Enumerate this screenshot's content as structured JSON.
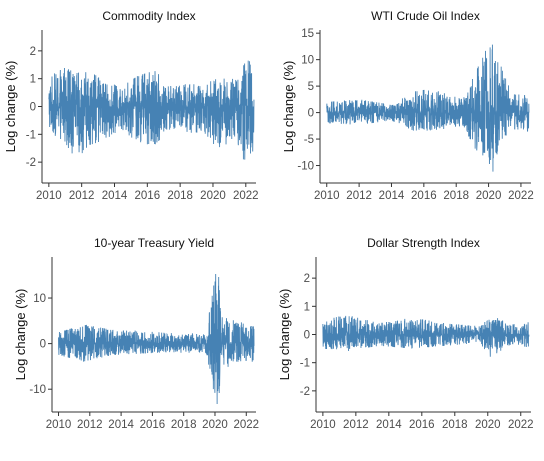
{
  "chart_data": [
    {
      "type": "line",
      "title": "Commodity Index",
      "xlabel": "",
      "ylabel": "Log change (%)",
      "xlim": [
        "2009-08-01",
        "2022-08-15"
      ],
      "ylim": [
        -2.75,
        2.75
      ],
      "yticks": [
        -2,
        -1,
        0,
        1,
        2
      ],
      "xticks": [
        "2010",
        "2012",
        "2014",
        "2016",
        "2018",
        "2020",
        "2022"
      ],
      "x_start": "2010-01-01",
      "x_end": "2022-06-30",
      "envelope": [
        {
          "x": "2010-01",
          "y": [
            -0.9,
            1.1
          ]
        },
        {
          "x": "2011-01",
          "y": [
            -1.3,
            1.4
          ]
        },
        {
          "x": "2011-09",
          "y": [
            -2.0,
            1.2
          ]
        },
        {
          "x": "2012-06",
          "y": [
            -1.4,
            1.3
          ]
        },
        {
          "x": "2013-06",
          "y": [
            -1.2,
            0.9
          ]
        },
        {
          "x": "2014-06",
          "y": [
            -0.8,
            0.7
          ]
        },
        {
          "x": "2015-06",
          "y": [
            -1.3,
            1.1
          ]
        },
        {
          "x": "2016-06",
          "y": [
            -1.4,
            1.3
          ]
        },
        {
          "x": "2017-06",
          "y": [
            -0.8,
            0.8
          ]
        },
        {
          "x": "2018-06",
          "y": [
            -1.0,
            0.8
          ]
        },
        {
          "x": "2019-06",
          "y": [
            -0.9,
            0.8
          ]
        },
        {
          "x": "2020-04",
          "y": [
            -1.5,
            1.0
          ]
        },
        {
          "x": "2021-06",
          "y": [
            -1.2,
            1.0
          ]
        },
        {
          "x": "2022-03",
          "y": [
            -2.4,
            1.8
          ]
        },
        {
          "x": "2022-06",
          "y": [
            -2.0,
            1.1
          ]
        }
      ]
    },
    {
      "type": "line",
      "title": "WTI Crude Oil Index",
      "xlabel": "",
      "ylabel": "Log change (%)",
      "xlim": [
        "2009-08-01",
        "2022-08-15"
      ],
      "ylim": [
        -13.3,
        15.6
      ],
      "yticks": [
        -10,
        -5,
        0,
        5,
        10,
        15
      ],
      "xticks": [
        "2010",
        "2012",
        "2014",
        "2016",
        "2018",
        "2020",
        "2022"
      ],
      "x_start": "2010-01-01",
      "x_end": "2022-06-30",
      "envelope": [
        {
          "x": "2010-01",
          "y": [
            -2.0,
            2.0
          ]
        },
        {
          "x": "2012-01",
          "y": [
            -2.3,
            2.5
          ]
        },
        {
          "x": "2014-01",
          "y": [
            -1.5,
            1.5
          ]
        },
        {
          "x": "2015-06",
          "y": [
            -3.5,
            4.0
          ]
        },
        {
          "x": "2016-06",
          "y": [
            -3.5,
            4.5
          ]
        },
        {
          "x": "2018-06",
          "y": [
            -2.5,
            2.5
          ]
        },
        {
          "x": "2020-03",
          "y": [
            -12.5,
            14.0
          ]
        },
        {
          "x": "2020-09",
          "y": [
            -6.0,
            9.8
          ]
        },
        {
          "x": "2021-06",
          "y": [
            -3.0,
            4.0
          ]
        },
        {
          "x": "2022-06",
          "y": [
            -3.5,
            3.5
          ]
        }
      ]
    },
    {
      "type": "line",
      "title": "10-year Treasury Yield",
      "xlabel": "",
      "ylabel": "Log change (%)",
      "xlim": [
        "2009-08-01",
        "2022-08-15"
      ],
      "ylim": [
        -15.0,
        19.0
      ],
      "yticks": [
        -10,
        0,
        10
      ],
      "xticks": [
        "2010",
        "2012",
        "2014",
        "2016",
        "2018",
        "2020",
        "2022"
      ],
      "x_start": "2010-01-01",
      "x_end": "2022-06-30",
      "envelope": [
        {
          "x": "2010-01",
          "y": [
            -2.5,
            2.5
          ]
        },
        {
          "x": "2011-09",
          "y": [
            -4.0,
            4.2
          ]
        },
        {
          "x": "2013-06",
          "y": [
            -2.5,
            3.0
          ]
        },
        {
          "x": "2016-06",
          "y": [
            -2.0,
            2.5
          ]
        },
        {
          "x": "2019-06",
          "y": [
            -2.0,
            2.0
          ]
        },
        {
          "x": "2020-03",
          "y": [
            -14.5,
            18.0
          ]
        },
        {
          "x": "2020-06",
          "y": [
            -6.0,
            6.0
          ]
        },
        {
          "x": "2021-06",
          "y": [
            -4.0,
            5.0
          ]
        },
        {
          "x": "2022-06",
          "y": [
            -4.0,
            4.5
          ]
        }
      ]
    },
    {
      "type": "line",
      "title": "Dollar Strength Index",
      "xlabel": "",
      "ylabel": "Log change (%)",
      "xlim": [
        "2009-08-01",
        "2022-08-15"
      ],
      "ylim": [
        -2.75,
        2.75
      ],
      "yticks": [
        -2,
        -1,
        0,
        1,
        2
      ],
      "xticks": [
        "2010",
        "2012",
        "2014",
        "2016",
        "2018",
        "2020",
        "2022"
      ],
      "x_start": "2010-01-01",
      "x_end": "2022-06-30",
      "envelope": [
        {
          "x": "2010-01",
          "y": [
            -0.5,
            0.5
          ]
        },
        {
          "x": "2011-06",
          "y": [
            -0.6,
            0.7
          ]
        },
        {
          "x": "2013-06",
          "y": [
            -0.4,
            0.4
          ]
        },
        {
          "x": "2015-06",
          "y": [
            -0.5,
            0.6
          ]
        },
        {
          "x": "2017-06",
          "y": [
            -0.4,
            0.4
          ]
        },
        {
          "x": "2019-06",
          "y": [
            -0.3,
            0.3
          ]
        },
        {
          "x": "2020-03",
          "y": [
            -0.8,
            0.7
          ]
        },
        {
          "x": "2021-06",
          "y": [
            -0.35,
            0.35
          ]
        },
        {
          "x": "2022-06",
          "y": [
            -0.45,
            0.45
          ]
        }
      ]
    }
  ]
}
